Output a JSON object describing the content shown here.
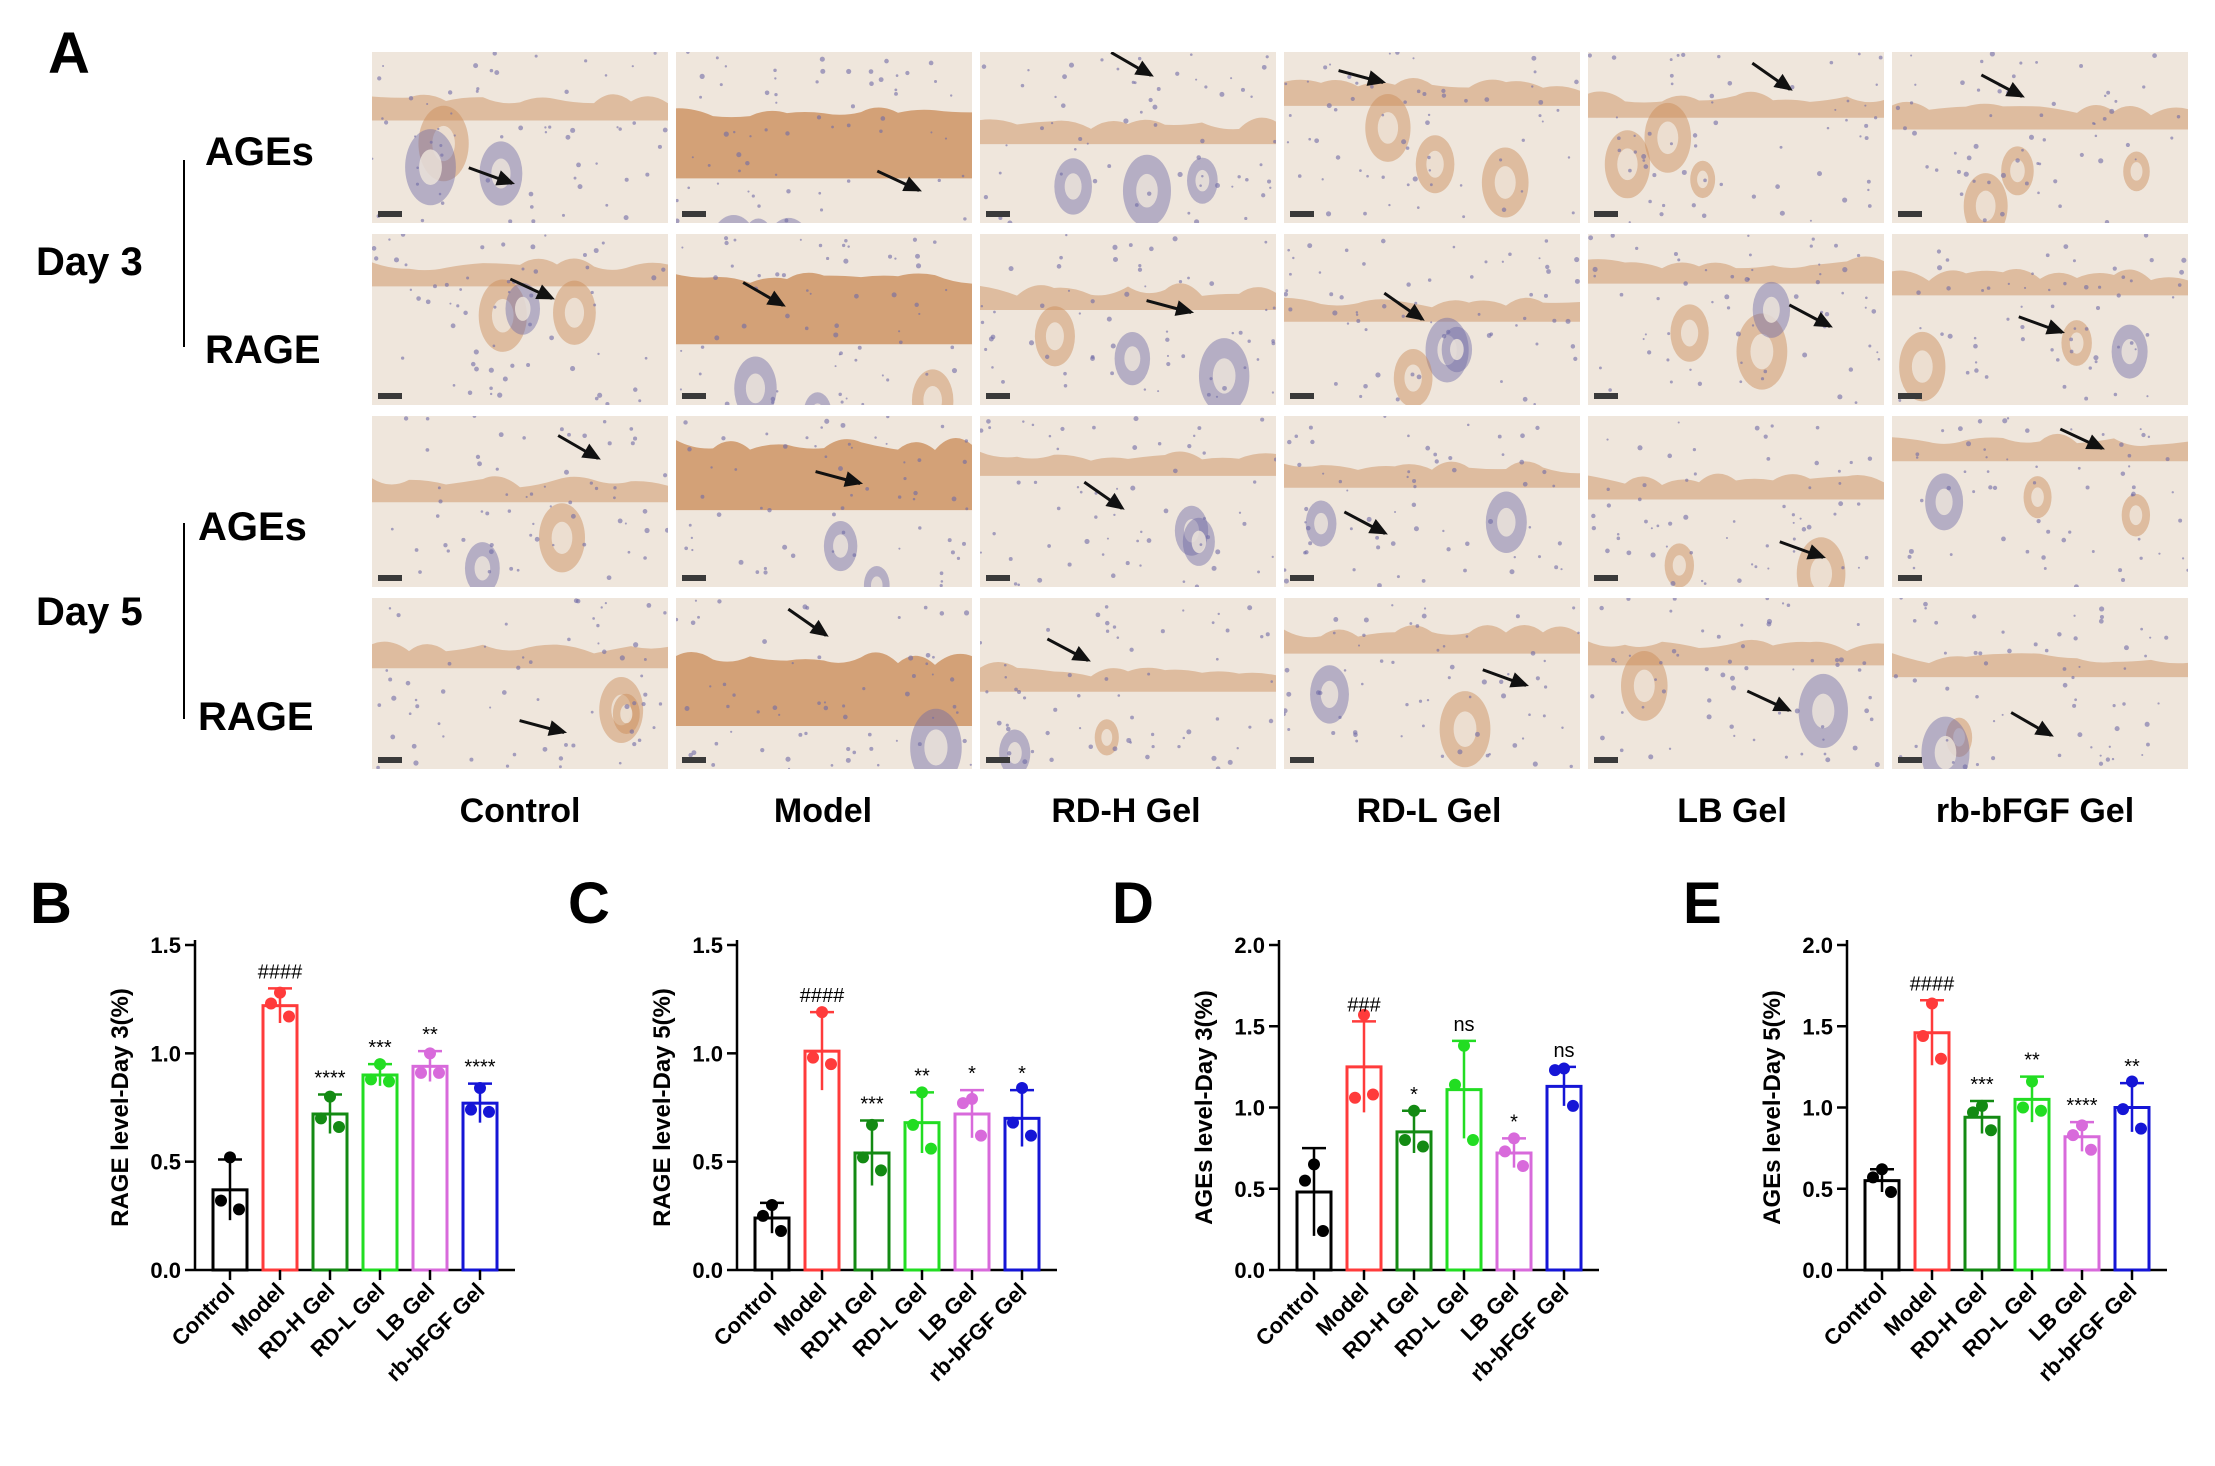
{
  "panel_a": {
    "letter": "A",
    "days": [
      {
        "label": "Day 3",
        "rows": [
          "AGEs",
          "RAGE"
        ]
      },
      {
        "label": "Day 5",
        "rows": [
          "AGEs",
          "RAGE"
        ]
      }
    ],
    "columns": [
      "Control",
      "Model",
      "RD-H Gel",
      "RD-L Gel",
      "LB Gel",
      "rb-bFGF Gel"
    ],
    "stain_colors": {
      "tissue": "#efe6dc",
      "hematoxylin": "#6f6aa6",
      "dab": "#c98a55"
    }
  },
  "chart_data": [
    {
      "letter": "B",
      "type": "bar",
      "ylabel": "RAGE level-Day 3(%)",
      "categories": [
        "Control",
        "Model",
        "RD-H Gel",
        "RD-L Gel",
        "LB Gel",
        "rb-bFGF Gel"
      ],
      "colors": [
        "#000000",
        "#ff3b3b",
        "#138a13",
        "#22dd22",
        "#d86adb",
        "#1515d6"
      ],
      "ylim": [
        0,
        1.5
      ],
      "yticks": [
        "0.0",
        "0.5",
        "1.0",
        "1.5"
      ],
      "values": [
        0.37,
        1.22,
        0.72,
        0.9,
        0.94,
        0.77
      ],
      "errors": [
        0.14,
        0.08,
        0.09,
        0.05,
        0.07,
        0.09
      ],
      "points": [
        [
          0.52,
          0.32,
          0.28
        ],
        [
          1.28,
          1.23,
          1.17
        ],
        [
          0.8,
          0.7,
          0.66
        ],
        [
          0.95,
          0.88,
          0.87
        ],
        [
          1.0,
          0.91,
          0.91
        ],
        [
          0.84,
          0.74,
          0.73
        ]
      ],
      "annotations": [
        "",
        "####",
        "****",
        "***",
        "**",
        "****"
      ]
    },
    {
      "letter": "C",
      "type": "bar",
      "ylabel": "RAGE level-Day 5(%)",
      "categories": [
        "Control",
        "Model",
        "RD-H Gel",
        "RD-L Gel",
        "LB Gel",
        "rb-bFGF Gel"
      ],
      "colors": [
        "#000000",
        "#ff3b3b",
        "#138a13",
        "#22dd22",
        "#d86adb",
        "#1515d6"
      ],
      "ylim": [
        0,
        1.5
      ],
      "yticks": [
        "0.0",
        "0.5",
        "1.0",
        "1.5"
      ],
      "values": [
        0.24,
        1.01,
        0.54,
        0.68,
        0.72,
        0.7
      ],
      "errors": [
        0.07,
        0.18,
        0.15,
        0.14,
        0.11,
        0.13
      ],
      "points": [
        [
          0.3,
          0.25,
          0.18
        ],
        [
          1.19,
          0.98,
          0.95
        ],
        [
          0.67,
          0.52,
          0.46
        ],
        [
          0.82,
          0.67,
          0.56
        ],
        [
          0.79,
          0.77,
          0.62
        ],
        [
          0.84,
          0.68,
          0.62
        ]
      ],
      "annotations": [
        "",
        "####",
        "***",
        "**",
        "*",
        "*"
      ]
    },
    {
      "letter": "D",
      "type": "bar",
      "ylabel": "AGEs level-Day 3(%)",
      "categories": [
        "Control",
        "Model",
        "RD-H Gel",
        "RD-L Gel",
        "LB Gel",
        "rb-bFGF Gel"
      ],
      "colors": [
        "#000000",
        "#ff3b3b",
        "#138a13",
        "#22dd22",
        "#d86adb",
        "#1515d6"
      ],
      "ylim": [
        0,
        2.0
      ],
      "yticks": [
        "0.0",
        "0.5",
        "1.0",
        "1.5",
        "2.0"
      ],
      "values": [
        0.48,
        1.25,
        0.85,
        1.11,
        0.72,
        1.13
      ],
      "errors": [
        0.27,
        0.28,
        0.13,
        0.3,
        0.09,
        0.12
      ],
      "points": [
        [
          0.65,
          0.55,
          0.24
        ],
        [
          1.57,
          1.06,
          1.08
        ],
        [
          0.98,
          0.8,
          0.76
        ],
        [
          1.38,
          1.14,
          0.8
        ],
        [
          0.81,
          0.73,
          0.64
        ],
        [
          1.24,
          1.23,
          1.01
        ]
      ],
      "annotations": [
        "",
        "###",
        "*",
        "ns",
        "*",
        "ns"
      ]
    },
    {
      "letter": "E",
      "type": "bar",
      "ylabel": "AGEs level-Day 5(%)",
      "categories": [
        "Control",
        "Model",
        "RD-H Gel",
        "RD-L Gel",
        "LB Gel",
        "rb-bFGF Gel"
      ],
      "colors": [
        "#000000",
        "#ff3b3b",
        "#138a13",
        "#22dd22",
        "#d86adb",
        "#1515d6"
      ],
      "ylim": [
        0,
        2.0
      ],
      "yticks": [
        "0.0",
        "0.5",
        "1.0",
        "1.5",
        "2.0"
      ],
      "values": [
        0.55,
        1.46,
        0.94,
        1.05,
        0.82,
        1.0
      ],
      "errors": [
        0.07,
        0.2,
        0.1,
        0.14,
        0.09,
        0.15
      ],
      "points": [
        [
          0.62,
          0.57,
          0.48
        ],
        [
          1.64,
          1.44,
          1.3
        ],
        [
          1.01,
          0.97,
          0.86
        ],
        [
          1.16,
          1.0,
          0.98
        ],
        [
          0.89,
          0.83,
          0.74
        ],
        [
          1.16,
          0.99,
          0.87
        ]
      ],
      "annotations": [
        "",
        "####",
        "***",
        "**",
        "****",
        "**"
      ]
    }
  ]
}
